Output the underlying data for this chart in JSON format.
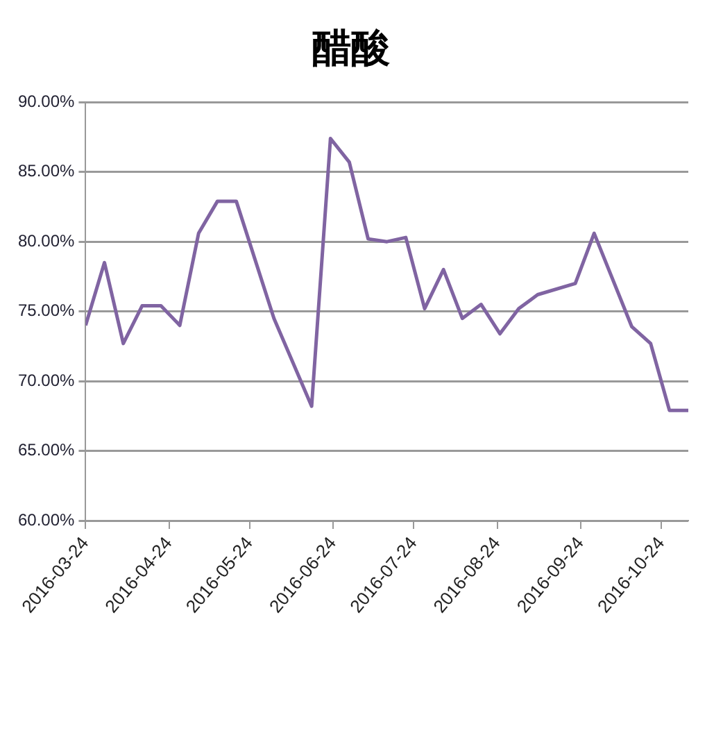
{
  "chart_data": {
    "type": "line",
    "title": "醋酸",
    "x": [
      "2016-03-24",
      "2016-03-31",
      "2016-04-07",
      "2016-04-14",
      "2016-04-21",
      "2016-04-28",
      "2016-05-05",
      "2016-05-12",
      "2016-05-19",
      "2016-06-02",
      "2016-06-16",
      "2016-06-23",
      "2016-06-30",
      "2016-07-07",
      "2016-07-14",
      "2016-07-21",
      "2016-07-28",
      "2016-08-04",
      "2016-08-11",
      "2016-08-18",
      "2016-08-25",
      "2016-09-01",
      "2016-09-08",
      "2016-09-22",
      "2016-09-29",
      "2016-10-13",
      "2016-10-20",
      "2016-10-27",
      "2016-11-03"
    ],
    "series": [
      {
        "color": "#8064a2",
        "values": [
          74.0,
          78.5,
          72.7,
          75.4,
          75.4,
          74.0,
          80.6,
          82.9,
          82.9,
          74.5,
          68.2,
          87.4,
          85.7,
          80.2,
          80.0,
          80.3,
          75.2,
          78.0,
          74.5,
          75.5,
          73.4,
          75.2,
          76.2,
          77.0,
          80.6,
          73.9,
          72.7,
          67.9,
          67.9
        ]
      }
    ],
    "xlim": [
      "2016-03-24",
      "2016-11-03"
    ],
    "xticks": [
      "2016-03-24",
      "2016-04-24",
      "2016-05-24",
      "2016-06-24",
      "2016-07-24",
      "2016-08-24",
      "2016-09-24",
      "2016-10-24"
    ],
    "ylim": [
      60,
      90
    ],
    "yticks": [
      {
        "value": 60,
        "label": "60.00%"
      },
      {
        "value": 65,
        "label": "65.00%"
      },
      {
        "value": 70,
        "label": "70.00%"
      },
      {
        "value": 75,
        "label": "75.00%"
      },
      {
        "value": 80,
        "label": "80.00%"
      },
      {
        "value": 85,
        "label": "85.00%"
      },
      {
        "value": 90,
        "label": "90.00%"
      }
    ],
    "grid": "y",
    "legend": false,
    "marker": "none",
    "line_style": "solid"
  }
}
